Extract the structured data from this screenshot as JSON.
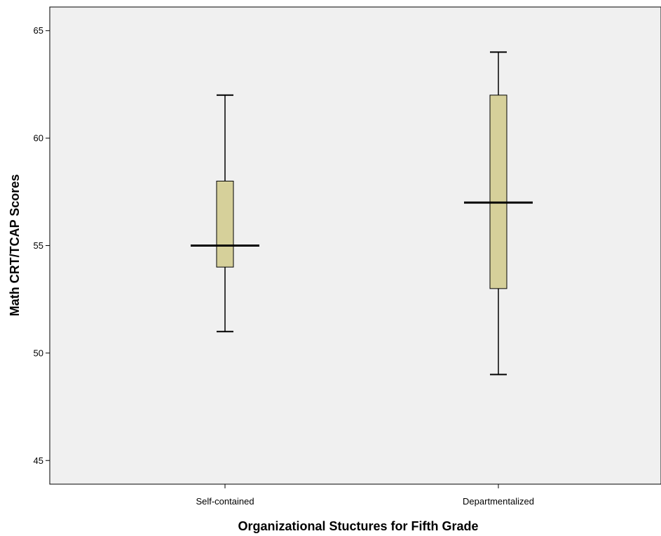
{
  "chart_data": {
    "type": "box",
    "title": "",
    "xlabel": "Organizational Stuctures for Fifth Grade",
    "ylabel": "Math CRT/TCAP Scores",
    "ylim": [
      43.9,
      66.1
    ],
    "yticks": [
      45,
      50,
      55,
      60,
      65
    ],
    "grid": false,
    "categories": [
      "Self-contained",
      "Departmentalized"
    ],
    "boxes": [
      {
        "category": "Self-contained",
        "min": 51,
        "q1": 54,
        "median": 55,
        "q3": 58,
        "max": 62
      },
      {
        "category": "Departmentalized",
        "min": 49,
        "q1": 53,
        "median": 57,
        "q3": 62,
        "max": 64
      }
    ],
    "colors": {
      "plot_background": "#f0f0f0",
      "box_fill": "#d6d09a",
      "line": "#000000"
    }
  }
}
